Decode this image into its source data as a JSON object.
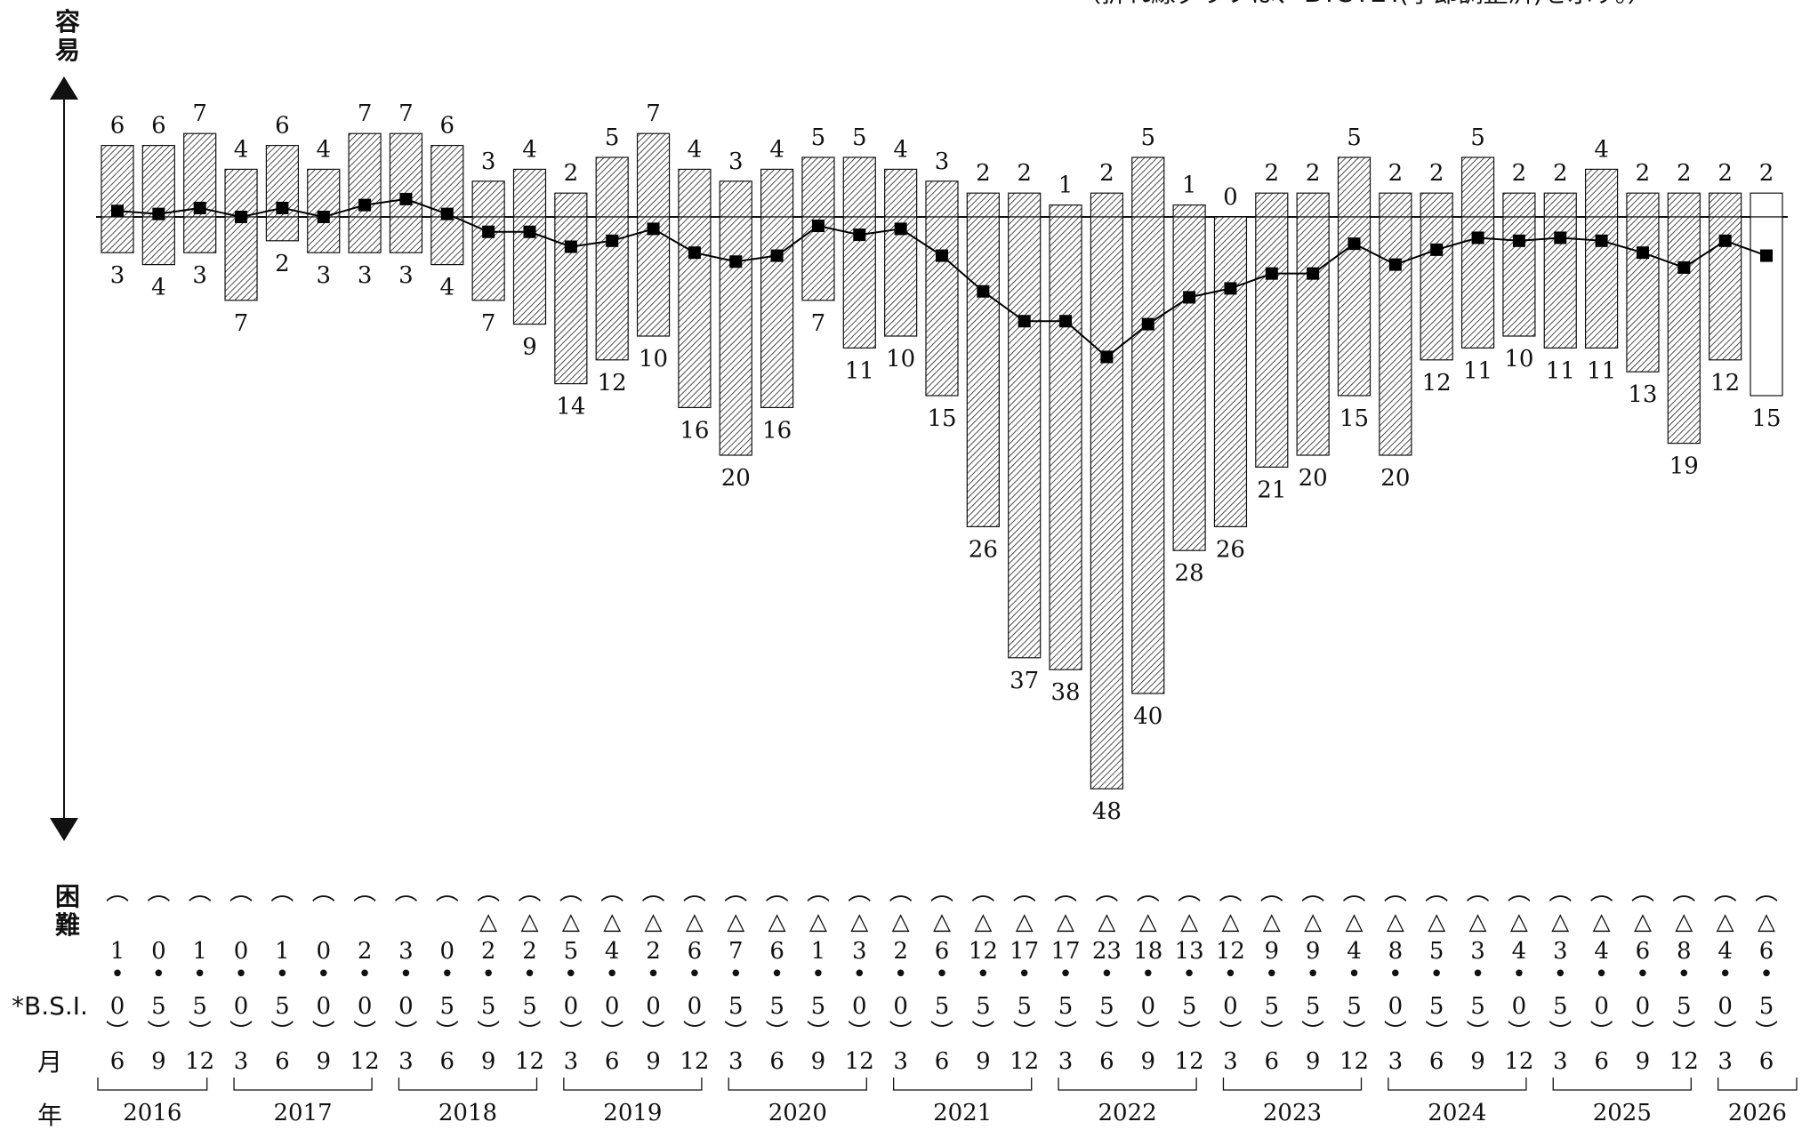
{
  "note": "（折れ線グラフは、Ｂ.Ｓ.Ｉ.(季節調整済)を示す。）",
  "axis": {
    "top_label": "容易",
    "bottom_label": "困難"
  },
  "row_labels": {
    "bsi": "*B.S.I.",
    "month": "月",
    "year": "年"
  },
  "chart_data": {
    "type": "bar",
    "categories": [
      "2016/6",
      "2016/9",
      "2016/12",
      "2017/3",
      "2017/6",
      "2017/9",
      "2017/12",
      "2018/3",
      "2018/6",
      "2018/9",
      "2018/12",
      "2019/3",
      "2019/6",
      "2019/9",
      "2019/12",
      "2020/3",
      "2020/6",
      "2020/9",
      "2020/12",
      "2021/3",
      "2021/6",
      "2021/9",
      "2021/12",
      "2022/3",
      "2022/6",
      "2022/9",
      "2022/12",
      "2023/3",
      "2023/6",
      "2023/9",
      "2023/12",
      "2024/3",
      "2024/6",
      "2024/9",
      "2024/12",
      "2025/3",
      "2025/6",
      "2025/9",
      "2025/12",
      "2026/3",
      "2026/6"
    ],
    "months": [
      "6",
      "9",
      "12",
      "3",
      "6",
      "9",
      "12",
      "3",
      "6",
      "9",
      "12",
      "3",
      "6",
      "9",
      "12",
      "3",
      "6",
      "9",
      "12",
      "3",
      "6",
      "9",
      "12",
      "3",
      "6",
      "9",
      "12",
      "3",
      "6",
      "9",
      "12",
      "3",
      "6",
      "9",
      "12",
      "3",
      "6",
      "9",
      "12",
      "3",
      "6"
    ],
    "years": [
      {
        "label": "2016",
        "count": 3
      },
      {
        "label": "2017",
        "count": 4
      },
      {
        "label": "2018",
        "count": 4
      },
      {
        "label": "2019",
        "count": 4
      },
      {
        "label": "2020",
        "count": 4
      },
      {
        "label": "2021",
        "count": 4
      },
      {
        "label": "2022",
        "count": 4
      },
      {
        "label": "2023",
        "count": 4
      },
      {
        "label": "2024",
        "count": 4
      },
      {
        "label": "2025",
        "count": 4
      },
      {
        "label": "2026",
        "count": 2
      }
    ],
    "series": [
      {
        "name": "容易",
        "values": [
          6,
          6,
          7,
          4,
          6,
          4,
          7,
          7,
          6,
          3,
          4,
          2,
          5,
          7,
          4,
          3,
          4,
          5,
          5,
          4,
          3,
          2,
          2,
          1,
          2,
          5,
          1,
          0,
          2,
          2,
          5,
          2,
          2,
          5,
          2,
          2,
          4,
          2,
          2,
          2,
          2
        ]
      },
      {
        "name": "困難",
        "values": [
          3,
          4,
          3,
          7,
          2,
          3,
          3,
          3,
          4,
          7,
          9,
          14,
          12,
          10,
          16,
          20,
          16,
          7,
          11,
          10,
          15,
          26,
          37,
          38,
          48,
          40,
          28,
          26,
          21,
          20,
          15,
          20,
          12,
          11,
          10,
          11,
          11,
          13,
          19,
          12,
          15
        ]
      },
      {
        "name": "B.S.I.",
        "values": [
          1.0,
          0.5,
          1.5,
          0.0,
          1.5,
          0.0,
          2.0,
          3.0,
          0.5,
          -2.5,
          -2.5,
          -5.0,
          -4.0,
          -2.0,
          -6.0,
          -7.5,
          -6.5,
          -1.5,
          -3.0,
          -2.0,
          -6.5,
          -12.5,
          -17.5,
          -17.5,
          -23.5,
          -18.0,
          -13.5,
          -12.0,
          -9.5,
          -9.5,
          -4.5,
          -8.0,
          -5.5,
          -3.5,
          -4.0,
          -3.5,
          -4.0,
          -6.0,
          -8.5,
          -4.0,
          -6.5
        ]
      }
    ],
    "bsi_labels": [
      "(1.0)",
      "(0.5)",
      "(1.5)",
      "(0.0)",
      "(1.5)",
      "(0.0)",
      "(2.0)",
      "(3.0)",
      "(0.5)",
      "(△2.5)",
      "(△2.5)",
      "(△5.0)",
      "(△4.0)",
      "(△2.0)",
      "(△6.0)",
      "(△7.5)",
      "(△6.5)",
      "(△1.5)",
      "(△3.0)",
      "(△2.0)",
      "(△6.5)",
      "(△12.5)",
      "(△17.5)",
      "(△17.5)",
      "(△23.5)",
      "(△18.0)",
      "(△13.5)",
      "(△12.0)",
      "(△9.5)",
      "(△9.5)",
      "(△4.5)",
      "(△8.0)",
      "(△5.5)",
      "(△3.5)",
      "(△4.0)",
      "(△3.5)",
      "(△4.0)",
      "(△6.0)",
      "(△8.5)",
      "(△4.0)",
      "(△6.5)"
    ],
    "forecast_index": 40,
    "colors": {
      "bar_hatch": "#222222",
      "line": "#000000",
      "marker": "#000000"
    }
  }
}
